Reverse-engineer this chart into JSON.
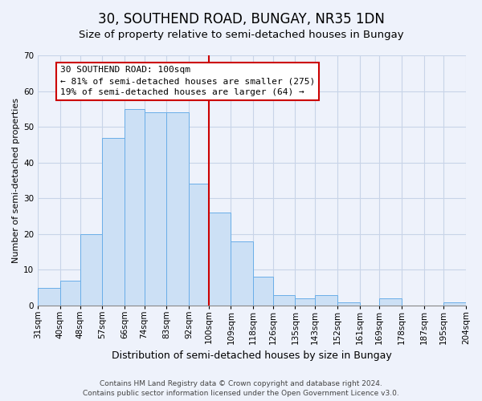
{
  "title": "30, SOUTHEND ROAD, BUNGAY, NR35 1DN",
  "subtitle": "Size of property relative to semi-detached houses in Bungay",
  "xlabel": "Distribution of semi-detached houses by size in Bungay",
  "ylabel": "Number of semi-detached properties",
  "footnote1": "Contains HM Land Registry data © Crown copyright and database right 2024.",
  "footnote2": "Contains public sector information licensed under the Open Government Licence v3.0.",
  "bin_labels": [
    "31sqm",
    "40sqm",
    "48sqm",
    "57sqm",
    "66sqm",
    "74sqm",
    "83sqm",
    "92sqm",
    "100sqm",
    "109sqm",
    "118sqm",
    "126sqm",
    "135sqm",
    "143sqm",
    "152sqm",
    "161sqm",
    "169sqm",
    "178sqm",
    "187sqm",
    "195sqm",
    "204sqm"
  ],
  "bin_left_edges": [
    31,
    40,
    48,
    57,
    66,
    74,
    83,
    92,
    100,
    109,
    118,
    126,
    135,
    143,
    152,
    161,
    169,
    178,
    187,
    195
  ],
  "bin_right_edges": [
    40,
    48,
    57,
    66,
    74,
    83,
    92,
    100,
    109,
    118,
    126,
    135,
    143,
    152,
    161,
    169,
    178,
    187,
    195,
    204
  ],
  "all_edges": [
    31,
    40,
    48,
    57,
    66,
    74,
    83,
    92,
    100,
    109,
    118,
    126,
    135,
    143,
    152,
    161,
    169,
    178,
    187,
    195,
    204
  ],
  "counts": [
    5,
    7,
    20,
    47,
    55,
    54,
    54,
    34,
    26,
    18,
    8,
    3,
    2,
    3,
    1,
    0,
    2,
    0,
    0,
    1
  ],
  "bar_color": "#cce0f5",
  "bar_edge_color": "#6aaee8",
  "property_size": 100,
  "vline_color": "#cc0000",
  "annotation_line1": "30 SOUTHEND ROAD: 100sqm",
  "annotation_line2": "← 81% of semi-detached houses are smaller (275)",
  "annotation_line3": "19% of semi-detached houses are larger (64) →",
  "annotation_box_color": "#cc0000",
  "ylim": [
    0,
    70
  ],
  "yticks": [
    0,
    10,
    20,
    30,
    40,
    50,
    60,
    70
  ],
  "background_color": "#eef2fb",
  "grid_color": "#c8d4e8",
  "title_fontsize": 12,
  "subtitle_fontsize": 9.5,
  "xlabel_fontsize": 9,
  "ylabel_fontsize": 8,
  "tick_fontsize": 7.5,
  "annotation_fontsize": 8,
  "footnote_fontsize": 6.5
}
